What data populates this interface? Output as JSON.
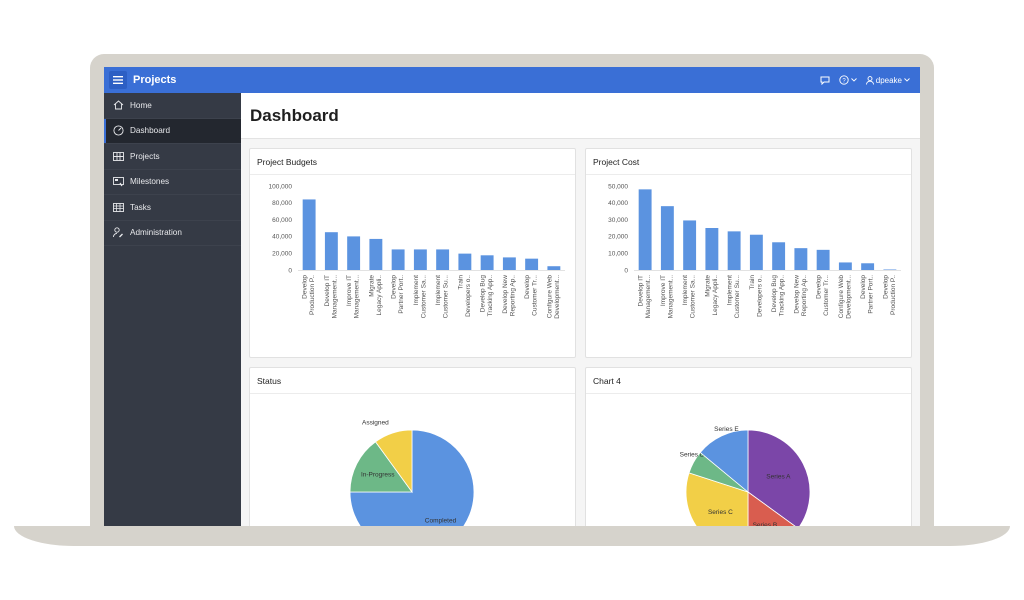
{
  "app": {
    "title": "Projects",
    "user": "dpeake"
  },
  "sidebar": {
    "items": [
      {
        "label": "Home",
        "icon": "home-icon"
      },
      {
        "label": "Dashboard",
        "icon": "dashboard-gauge-icon",
        "active": true
      },
      {
        "label": "Projects",
        "icon": "grid-icon"
      },
      {
        "label": "Milestones",
        "icon": "milestone-icon"
      },
      {
        "label": "Tasks",
        "icon": "table-icon"
      },
      {
        "label": "Administration",
        "icon": "user-wrench-icon"
      }
    ]
  },
  "page": {
    "title": "Dashboard"
  },
  "colors": {
    "accent": "#3a6fd6",
    "sidebar": "#353a45",
    "bar": "#5b93e0"
  },
  "cards": {
    "project_budgets": {
      "title": "Project Budgets"
    },
    "project_cost": {
      "title": "Project Cost"
    },
    "status": {
      "title": "Status"
    },
    "chart4": {
      "title": "Chart 4"
    }
  },
  "chart_data": [
    {
      "type": "bar",
      "title": "Project Budgets",
      "categories": [
        "Develop Production P...",
        "Develop IT Management...",
        "Improve IT Management...",
        "Migrate Legacy Appli...",
        "Develop Partner Port...",
        "Implement Customer Sa...",
        "Implement Customer Su...",
        "Train Developers o...",
        "Develop Bug Tracking App...",
        "Develop New Reporting Ap...",
        "Develop Customer Tr...",
        "Configure Web Development..."
      ],
      "values": [
        84000,
        45000,
        40000,
        37000,
        24500,
        24500,
        24500,
        19500,
        17500,
        15000,
        13500,
        4500
      ],
      "yticks": [
        "0",
        "20,000",
        "40,000",
        "60,000",
        "80,000",
        "100,000"
      ],
      "ylim": [
        0,
        100000
      ],
      "color": "#5b93e0"
    },
    {
      "type": "bar",
      "title": "Project Cost",
      "categories": [
        "Develop IT Management...",
        "Improve IT Management...",
        "Implement Customer Sa...",
        "Migrate Legacy Appli...",
        "Implement Customer Su...",
        "Train Developers o...",
        "Develop Bug Tracking App...",
        "Develop New Reporting Ap...",
        "Develop Customer Tr...",
        "Configure Web Development...",
        "Develop Partner Port...",
        "Develop Production P..."
      ],
      "values": [
        48000,
        38000,
        29500,
        25000,
        23000,
        21000,
        16500,
        13000,
        12000,
        4500,
        4000,
        300
      ],
      "yticks": [
        "0",
        "10,000",
        "20,000",
        "30,000",
        "40,000",
        "50,000"
      ],
      "ylim": [
        0,
        50000
      ],
      "color": "#5b93e0"
    },
    {
      "type": "pie",
      "title": "Status",
      "slices": [
        {
          "name": "Completed",
          "value": 75,
          "color": "#5b93e0"
        },
        {
          "name": "In-Progress",
          "value": 15,
          "color": "#6db887"
        },
        {
          "name": "Assigned",
          "value": 10,
          "color": "#f2cf47"
        }
      ]
    },
    {
      "type": "pie",
      "title": "Chart 4",
      "slices": [
        {
          "name": "Series A",
          "value": 35,
          "color": "#7b46a8"
        },
        {
          "name": "Series B",
          "value": 15,
          "color": "#d95d4f"
        },
        {
          "name": "Series C",
          "value": 30,
          "color": "#f2cf47"
        },
        {
          "name": "Series D",
          "value": 6,
          "color": "#6db887"
        },
        {
          "name": "Series E",
          "value": 14,
          "color": "#5b93e0"
        }
      ]
    }
  ]
}
